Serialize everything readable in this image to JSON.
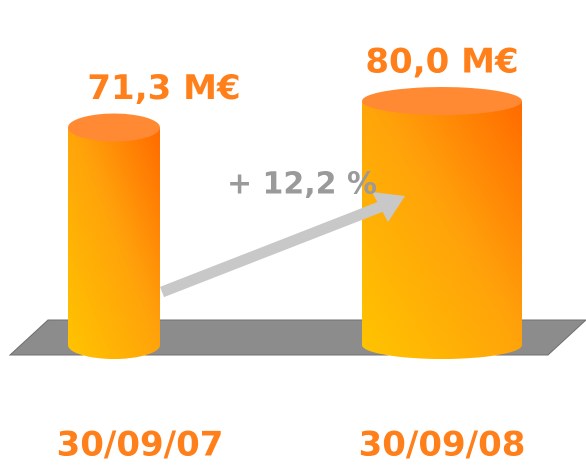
{
  "chart_data": {
    "type": "bar",
    "categories": [
      "30/09/07",
      "30/09/08"
    ],
    "values": [
      71.3,
      80.0
    ],
    "value_labels": [
      "71,3 M€",
      "80,0 M€"
    ],
    "annotation": "+ 12,2 %",
    "color": "#ff7f1a"
  }
}
